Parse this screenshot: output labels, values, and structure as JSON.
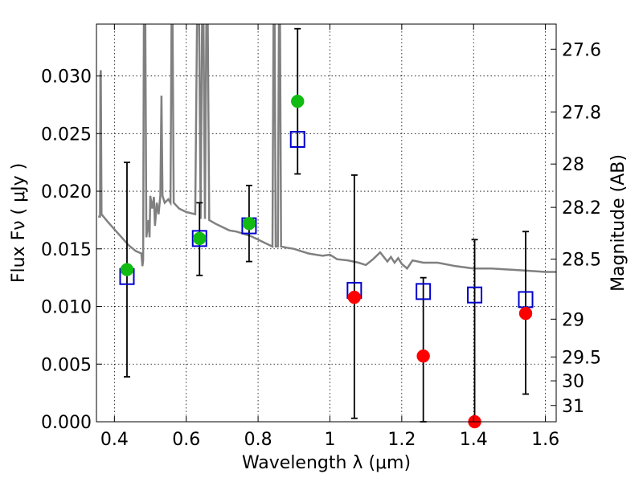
{
  "chart_data": {
    "type": "scatter",
    "title": "",
    "xlabel": "Wavelength  λ (μm)",
    "ylabel": "Flux  Fν  ( μJy )",
    "ylabel_right": "Magnitude (AB)",
    "xlim": [
      0.35,
      1.63
    ],
    "ylim": [
      0.0,
      0.0345
    ],
    "grid": true,
    "x_ticks": [
      0.4,
      0.6,
      0.8,
      1.0,
      1.2,
      1.4,
      1.6
    ],
    "x_tick_labels": [
      "0.4",
      "0.6",
      "0.8",
      "1",
      "1.2",
      "1.4",
      "1.6"
    ],
    "y_ticks": [
      0.0,
      0.005,
      0.01,
      0.015,
      0.02,
      0.025,
      0.03
    ],
    "y_tick_labels": [
      "0.000",
      "0.005",
      "0.010",
      "0.015",
      "0.020",
      "0.025",
      "0.030"
    ],
    "right_axis_ticks": [
      {
        "label": "27.6",
        "flux": 0.03232
      },
      {
        "label": "27.8",
        "flux": 0.02688
      },
      {
        "label": "28",
        "flux": 0.02236
      },
      {
        "label": "28.2",
        "flux": 0.0186
      },
      {
        "label": "28.5",
        "flux": 0.01411
      },
      {
        "label": "29",
        "flux": 0.0089
      },
      {
        "label": "29.5",
        "flux": 0.00562
      },
      {
        "label": "30",
        "flux": 0.00355
      },
      {
        "label": "31",
        "flux": 0.00141
      }
    ],
    "series": [
      {
        "marker": "square-open",
        "color": "#0000cc",
        "points": [
          {
            "x": 0.435,
            "y": 0.0126
          },
          {
            "x": 0.637,
            "y": 0.0159
          },
          {
            "x": 0.775,
            "y": 0.017
          },
          {
            "x": 0.91,
            "y": 0.0245
          },
          {
            "x": 1.068,
            "y": 0.0114
          },
          {
            "x": 1.26,
            "y": 0.0113
          },
          {
            "x": 1.403,
            "y": 0.011
          },
          {
            "x": 1.545,
            "y": 0.0106
          }
        ]
      },
      {
        "marker": "circle-filled",
        "color": "#11bb11",
        "points": [
          {
            "x": 0.435,
            "y": 0.0132
          },
          {
            "x": 0.637,
            "y": 0.0159
          },
          {
            "x": 0.775,
            "y": 0.0172
          },
          {
            "x": 0.91,
            "y": 0.0278
          }
        ]
      },
      {
        "marker": "circle-filled",
        "color": "#ff0000",
        "points": [
          {
            "x": 1.068,
            "y": 0.0108
          },
          {
            "x": 1.26,
            "y": 0.0057
          },
          {
            "x": 1.403,
            "y": 0.0
          },
          {
            "x": 1.545,
            "y": 0.0094
          }
        ]
      }
    ],
    "error_bars": [
      {
        "x": 0.435,
        "low": 0.0039,
        "high": 0.0225
      },
      {
        "x": 0.637,
        "low": 0.0127,
        "high": 0.019
      },
      {
        "x": 0.775,
        "low": 0.0139,
        "high": 0.0205
      },
      {
        "x": 0.91,
        "low": 0.0215,
        "high": 0.0341
      },
      {
        "x": 1.068,
        "low": 0.0003,
        "high": 0.0214
      },
      {
        "x": 1.26,
        "low": 0.0,
        "high": 0.0125
      },
      {
        "x": 1.403,
        "low": 0.0,
        "high": 0.0158
      },
      {
        "x": 1.545,
        "low": 0.0024,
        "high": 0.0165
      }
    ],
    "model_spectrum": {
      "color": "#808080",
      "points": [
        [
          0.355,
          0.0178
        ],
        [
          0.36,
          0.0178
        ],
        [
          0.361,
          0.03
        ],
        [
          0.362,
          0.0305
        ],
        [
          0.364,
          0.018
        ],
        [
          0.38,
          0.0174
        ],
        [
          0.4,
          0.0167
        ],
        [
          0.42,
          0.016
        ],
        [
          0.44,
          0.0153
        ],
        [
          0.46,
          0.0148
        ],
        [
          0.475,
          0.0146
        ],
        [
          0.478,
          0.0135
        ],
        [
          0.48,
          0.014
        ],
        [
          0.482,
          0.0345
        ],
        [
          0.486,
          0.0345
        ],
        [
          0.489,
          0.016
        ],
        [
          0.495,
          0.0175
        ],
        [
          0.498,
          0.016
        ],
        [
          0.5,
          0.0196
        ],
        [
          0.505,
          0.0185
        ],
        [
          0.51,
          0.0195
        ],
        [
          0.513,
          0.017
        ],
        [
          0.518,
          0.019
        ],
        [
          0.523,
          0.018
        ],
        [
          0.528,
          0.0196
        ],
        [
          0.531,
          0.0283
        ],
        [
          0.534,
          0.0196
        ],
        [
          0.54,
          0.019
        ],
        [
          0.55,
          0.0193
        ],
        [
          0.556,
          0.019
        ],
        [
          0.559,
          0.0345
        ],
        [
          0.562,
          0.0345
        ],
        [
          0.565,
          0.019
        ],
        [
          0.58,
          0.0185
        ],
        [
          0.6,
          0.0182
        ],
        [
          0.625,
          0.018
        ],
        [
          0.63,
          0.0345
        ],
        [
          0.636,
          0.0345
        ],
        [
          0.64,
          0.0176
        ],
        [
          0.644,
          0.0345
        ],
        [
          0.648,
          0.0345
        ],
        [
          0.652,
          0.0176
        ],
        [
          0.656,
          0.0345
        ],
        [
          0.66,
          0.0345
        ],
        [
          0.664,
          0.0175
        ],
        [
          0.68,
          0.0172
        ],
        [
          0.7,
          0.0169
        ],
        [
          0.72,
          0.0166
        ],
        [
          0.74,
          0.0165
        ],
        [
          0.76,
          0.0163
        ],
        [
          0.78,
          0.0161
        ],
        [
          0.8,
          0.0158
        ],
        [
          0.82,
          0.0155
        ],
        [
          0.84,
          0.0152
        ],
        [
          0.843,
          0.0345
        ],
        [
          0.846,
          0.0345
        ],
        [
          0.849,
          0.0152
        ],
        [
          0.855,
          0.0152
        ],
        [
          0.858,
          0.0345
        ],
        [
          0.861,
          0.0345
        ],
        [
          0.864,
          0.0152
        ],
        [
          0.88,
          0.0151
        ],
        [
          0.9,
          0.015
        ],
        [
          0.92,
          0.0148
        ],
        [
          0.94,
          0.0146
        ],
        [
          0.96,
          0.0145
        ],
        [
          0.98,
          0.0144
        ],
        [
          1.0,
          0.0145
        ],
        [
          1.02,
          0.0141
        ],
        [
          1.05,
          0.014
        ],
        [
          1.08,
          0.0138
        ],
        [
          1.1,
          0.0136
        ],
        [
          1.12,
          0.0141
        ],
        [
          1.14,
          0.0147
        ],
        [
          1.16,
          0.0139
        ],
        [
          1.17,
          0.0143
        ],
        [
          1.18,
          0.0138
        ],
        [
          1.19,
          0.0142
        ],
        [
          1.2,
          0.0137
        ],
        [
          1.215,
          0.0133
        ],
        [
          1.23,
          0.014
        ],
        [
          1.26,
          0.0138
        ],
        [
          1.3,
          0.0138
        ],
        [
          1.35,
          0.0135
        ],
        [
          1.4,
          0.0133
        ],
        [
          1.45,
          0.0133
        ],
        [
          1.5,
          0.0132
        ],
        [
          1.55,
          0.0131
        ],
        [
          1.6,
          0.013
        ],
        [
          1.63,
          0.013
        ]
      ]
    }
  }
}
